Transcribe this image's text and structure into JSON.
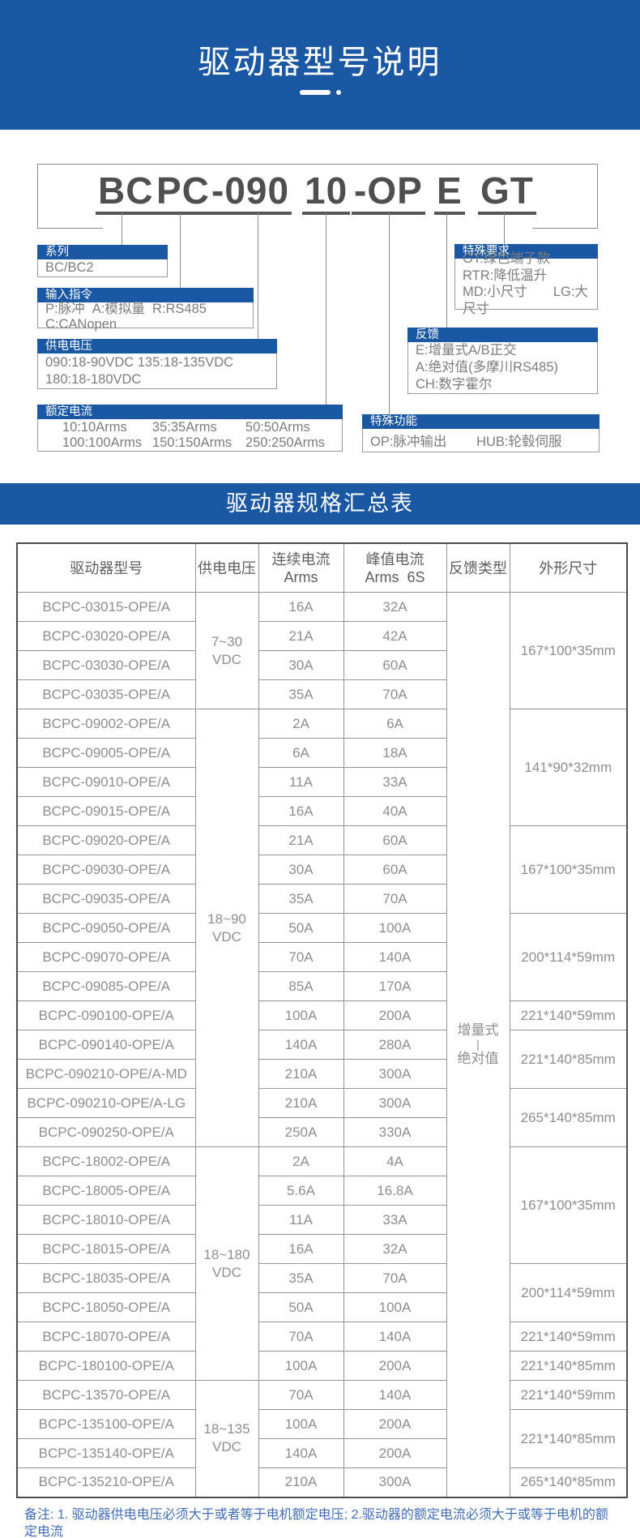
{
  "colors": {
    "primary_blue": "#1b58a3",
    "note_blue": "#3f6db6"
  },
  "banner": {
    "title": "驱动器型号说明"
  },
  "model_diagram": {
    "segments": [
      "BC",
      "PC",
      "-090",
      "10",
      "-OP",
      "E",
      "GT"
    ],
    "callouts": {
      "series": {
        "title": "系列",
        "lines": [
          "BC/BC2"
        ]
      },
      "input_cmd": {
        "title": "输入指令",
        "lines": [
          "P:脉冲  A:模拟量  R:RS485  C:CANopen"
        ]
      },
      "supply_voltage": {
        "title": "供电电压",
        "lines": [
          "090:18-90VDC 135:18-135VDC",
          "180:18-180VDC"
        ]
      },
      "rated_current": {
        "title": "额定电流",
        "lines": [
          "10:10Arms",
          "35:35Arms",
          "50:50Arms",
          "100:100Arms",
          "150:150Arms",
          "250:250Arms"
        ]
      },
      "special_req": {
        "title": "特殊要求",
        "lines": [
          "GT:绿色端子款",
          "RTR:降低温升",
          "MD:小尺寸       LG:大尺寸"
        ]
      },
      "feedback": {
        "title": "反馈",
        "lines": [
          "E:增量式A/B正交",
          "A:绝对值(多摩川RS485)",
          "CH:数字霍尔"
        ]
      },
      "special_func": {
        "title": "特殊功能",
        "lines": [
          "OP:脉冲输出        HUB:轮毂伺服"
        ]
      }
    }
  },
  "spec_table": {
    "band_title": "驱动器规格汇总表",
    "headers": [
      [
        "驱动器型号"
      ],
      [
        "供电电压"
      ],
      [
        "连续电流",
        "Arms"
      ],
      [
        "峰值电流",
        "Arms  6S"
      ],
      [
        "反馈类型"
      ],
      [
        "外形尺寸"
      ]
    ],
    "rows": [
      [
        "BCPC-03015-OPE/A",
        "16A",
        "32A"
      ],
      [
        "BCPC-03020-OPE/A",
        "21A",
        "42A"
      ],
      [
        "BCPC-03030-OPE/A",
        "30A",
        "60A"
      ],
      [
        "BCPC-03035-OPE/A",
        "35A",
        "70A"
      ],
      [
        "BCPC-09002-OPE/A",
        "2A",
        "6A"
      ],
      [
        "BCPC-09005-OPE/A",
        "6A",
        "18A"
      ],
      [
        "BCPC-09010-OPE/A",
        "11A",
        "33A"
      ],
      [
        "BCPC-09015-OPE/A",
        "16A",
        "40A"
      ],
      [
        "BCPC-09020-OPE/A",
        "21A",
        "60A"
      ],
      [
        "BCPC-09030-OPE/A",
        "30A",
        "60A"
      ],
      [
        "BCPC-09035-OPE/A",
        "35A",
        "70A"
      ],
      [
        "BCPC-09050-OPE/A",
        "50A",
        "100A"
      ],
      [
        "BCPC-09070-OPE/A",
        "70A",
        "140A"
      ],
      [
        "BCPC-09085-OPE/A",
        "85A",
        "170A"
      ],
      [
        "BCPC-090100-OPE/A",
        "100A",
        "200A"
      ],
      [
        "BCPC-090140-OPE/A",
        "140A",
        "280A"
      ],
      [
        "BCPC-090210-OPE/A-MD",
        "210A",
        "300A"
      ],
      [
        "BCPC-090210-OPE/A-LG",
        "210A",
        "300A"
      ],
      [
        "BCPC-090250-OPE/A",
        "250A",
        "330A"
      ],
      [
        "BCPC-18002-OPE/A",
        "2A",
        "4A"
      ],
      [
        "BCPC-18005-OPE/A",
        "5.6A",
        "16.8A"
      ],
      [
        "BCPC-18010-OPE/A",
        "11A",
        "33A"
      ],
      [
        "BCPC-18015-OPE/A",
        "16A",
        "32A"
      ],
      [
        "BCPC-18035-OPE/A",
        "35A",
        "70A"
      ],
      [
        "BCPC-18050-OPE/A",
        "50A",
        "100A"
      ],
      [
        "BCPC-18070-OPE/A",
        "70A",
        "140A"
      ],
      [
        "BCPC-180100-OPE/A",
        "100A",
        "200A"
      ],
      [
        "BCPC-13570-OPE/A",
        "70A",
        "140A"
      ],
      [
        "BCPC-135100-OPE/A",
        "100A",
        "200A"
      ],
      [
        "BCPC-135140-OPE/A",
        "140A",
        "200A"
      ],
      [
        "BCPC-135210-OPE/A",
        "210A",
        "300A"
      ]
    ],
    "voltage_groups": [
      {
        "lines": [
          "7~30",
          "VDC"
        ],
        "span": 4
      },
      {
        "lines": [
          "18~90",
          "VDC"
        ],
        "span": 15
      },
      {
        "lines": [
          "18~180",
          "VDC"
        ],
        "span": 8
      },
      {
        "lines": [
          "18~135",
          "VDC"
        ],
        "span": 4
      }
    ],
    "feedback_group": {
      "lines": [
        "增量式",
        "|",
        "绝对值"
      ],
      "span": 31
    },
    "dimension_groups": [
      {
        "label": "167*100*35mm",
        "span": 4
      },
      {
        "label": "141*90*32mm",
        "span": 4
      },
      {
        "label": "167*100*35mm",
        "span": 3
      },
      {
        "label": "200*114*59mm",
        "span": 3
      },
      {
        "label": "221*140*59mm",
        "span": 1
      },
      {
        "label": "221*140*85mm",
        "span": 2
      },
      {
        "label": "265*140*85mm",
        "span": 2
      },
      {
        "label": "167*100*35mm",
        "span": 4
      },
      {
        "label": "200*114*59mm",
        "span": 2
      },
      {
        "label": "221*140*59mm",
        "span": 1
      },
      {
        "label": "221*140*85mm",
        "span": 1
      },
      {
        "label": "221*140*59mm",
        "span": 1
      },
      {
        "label": "221*140*85mm",
        "span": 2
      },
      {
        "label": "265*140*85mm",
        "span": 1
      }
    ]
  },
  "footnote": "备注: 1. 驱动器供电电压必须大于或者等于电机额定电压; 2.驱动器的额定电流必须大于或等于电机的额定电流"
}
